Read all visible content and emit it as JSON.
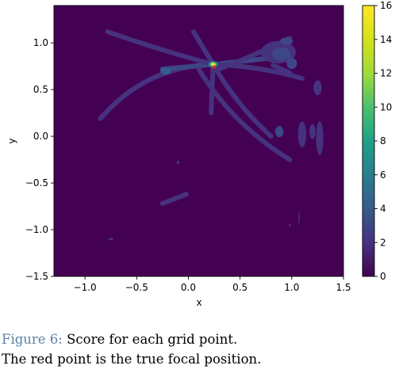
{
  "caption": {
    "label": "Figure 6:",
    "line1": "Score for each grid point.",
    "line2": "The red point is the true focal position."
  },
  "chart_data": {
    "type": "heatmap",
    "title": "",
    "xlabel": "x",
    "ylabel": "y",
    "xlim": [
      -1.3,
      1.5
    ],
    "ylim": [
      -1.5,
      1.4
    ],
    "xticks": [
      -1.0,
      -0.5,
      0.0,
      0.5,
      1.0,
      1.5
    ],
    "xtick_labels": [
      "−1.0",
      "−0.5",
      "0.0",
      "0.5",
      "1.0",
      "1.5"
    ],
    "yticks": [
      -1.5,
      -1.0,
      -0.5,
      0.0,
      0.5,
      1.0
    ],
    "ytick_labels": [
      "−1.5",
      "−1.0",
      "−0.5",
      "0.0",
      "0.5",
      "1.0"
    ],
    "colormap": "viridis",
    "colorbar": {
      "range": [
        0,
        16
      ],
      "ticks": [
        0,
        2,
        4,
        6,
        8,
        10,
        12,
        14,
        16
      ],
      "tick_labels": [
        "0",
        "2",
        "4",
        "6",
        "8",
        "10",
        "12",
        "14",
        "16"
      ]
    },
    "background_score": 0,
    "peak": {
      "x": 0.24,
      "y": 0.77,
      "score": 16
    },
    "true_focal_point": {
      "x": 0.25,
      "y": 0.74,
      "color": "#e02020"
    },
    "ridges": [
      {
        "from": [
          0.24,
          0.77
        ],
        "to": [
          -0.85,
          0.19
        ],
        "score": 2,
        "arc": 0.22
      },
      {
        "from": [
          0.24,
          0.77
        ],
        "to": [
          -0.25,
          0.72
        ],
        "score": 3,
        "arc": 0.0
      },
      {
        "from": [
          0.24,
          0.77
        ],
        "to": [
          -0.78,
          1.12
        ],
        "score": 2,
        "arc": -0.02
      },
      {
        "from": [
          0.24,
          0.77
        ],
        "to": [
          0.22,
          0.25
        ],
        "score": 2,
        "arc": 0.0
      },
      {
        "from": [
          0.24,
          0.77
        ],
        "to": [
          0.05,
          1.12
        ],
        "score": 2,
        "arc": 0.0
      },
      {
        "from": [
          0.24,
          0.77
        ],
        "to": [
          0.8,
          0.0
        ],
        "score": 2,
        "arc": 0.08
      },
      {
        "from": [
          0.24,
          0.77
        ],
        "to": [
          0.82,
          0.84
        ],
        "score": 3,
        "arc": 0.0
      },
      {
        "from": [
          0.24,
          0.77
        ],
        "to": [
          1.1,
          0.62
        ],
        "score": 2,
        "arc": -0.06
      },
      {
        "from": [
          0.1,
          0.72
        ],
        "to": [
          0.98,
          -0.25
        ],
        "score": 2,
        "arc": 0.12
      },
      {
        "from": [
          0.3,
          0.72
        ],
        "to": [
          0.98,
          1.05
        ],
        "score": 2,
        "arc": 0.02
      },
      {
        "from": [
          0.82,
          0.76
        ],
        "to": [
          0.98,
          0.68
        ],
        "score": 2,
        "arc": 0.0
      },
      {
        "from": [
          -0.25,
          -0.72
        ],
        "to": [
          -0.02,
          -0.62
        ],
        "score": 2,
        "arc": 0.0
      }
    ],
    "blobs": [
      {
        "x": 0.24,
        "y": 0.77,
        "rx": 0.045,
        "ry": 0.035,
        "score": 7
      },
      {
        "x": 0.24,
        "y": 0.77,
        "rx": 0.026,
        "ry": 0.021,
        "score": 12
      },
      {
        "x": 0.24,
        "y": 0.77,
        "rx": 0.013,
        "ry": 0.012,
        "score": 16
      },
      {
        "x": -0.22,
        "y": 0.7,
        "rx": 0.05,
        "ry": 0.04,
        "score": 4
      },
      {
        "x": 0.87,
        "y": 0.9,
        "rx": 0.17,
        "ry": 0.12,
        "score": 2
      },
      {
        "x": 0.9,
        "y": 0.88,
        "rx": 0.09,
        "ry": 0.07,
        "score": 3
      },
      {
        "x": 1.0,
        "y": 0.78,
        "rx": 0.05,
        "ry": 0.06,
        "score": 3
      },
      {
        "x": 0.95,
        "y": 1.02,
        "rx": 0.06,
        "ry": 0.04,
        "score": 3
      },
      {
        "x": 1.25,
        "y": 0.52,
        "rx": 0.04,
        "ry": 0.08,
        "score": 2
      },
      {
        "x": 1.1,
        "y": 0.02,
        "rx": 0.04,
        "ry": 0.14,
        "score": 2
      },
      {
        "x": 1.27,
        "y": -0.02,
        "rx": 0.035,
        "ry": 0.18,
        "score": 2
      },
      {
        "x": 1.2,
        "y": 0.05,
        "rx": 0.03,
        "ry": 0.08,
        "score": 2
      },
      {
        "x": 0.88,
        "y": 0.05,
        "rx": 0.04,
        "ry": 0.06,
        "score": 3
      },
      {
        "x": -0.75,
        "y": -1.1,
        "rx": 0.025,
        "ry": 0.012,
        "score": 2
      },
      {
        "x": -0.1,
        "y": -0.28,
        "rx": 0.015,
        "ry": 0.02,
        "score": 2
      },
      {
        "x": 1.07,
        "y": -0.87,
        "rx": 0.006,
        "ry": 0.07,
        "score": 2
      },
      {
        "x": 0.98,
        "y": -0.95,
        "rx": 0.01,
        "ry": 0.012,
        "score": 2
      }
    ]
  }
}
